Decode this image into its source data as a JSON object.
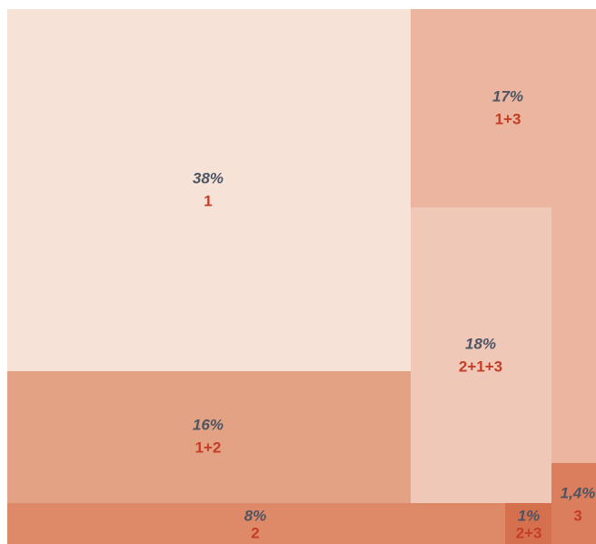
{
  "chart_data": {
    "type": "treemap",
    "categories": [
      "1",
      "1+3",
      "2+1+3",
      "1+2",
      "2",
      "2+3",
      "3"
    ],
    "values": [
      38,
      17,
      18,
      16,
      8,
      1,
      1.4
    ],
    "value_labels": [
      "38%",
      "17%",
      "18%",
      "16%",
      "8%",
      "1%",
      "1,4%"
    ],
    "colors": [
      "#f7e2d8",
      "#ebb59f",
      "#f0c8b8",
      "#e4a285",
      "#de8968",
      "#d4704d",
      "#db7e5d"
    ]
  }
}
